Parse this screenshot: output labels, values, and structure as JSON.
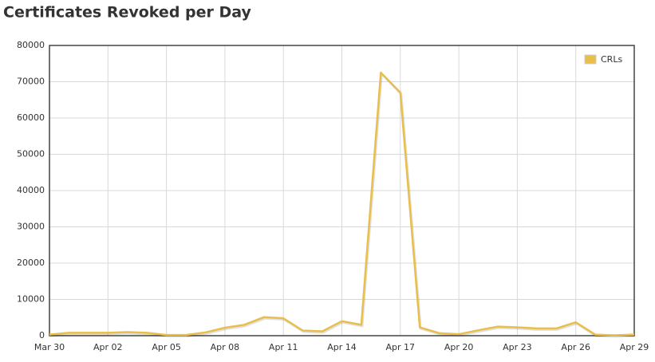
{
  "chart_data": {
    "type": "line",
    "title": "Certificates Revoked per Day",
    "categories": [
      "Mar 30",
      null,
      null,
      "Apr 02",
      null,
      null,
      "Apr 05",
      null,
      null,
      "Apr 08",
      null,
      null,
      "Apr 11",
      null,
      null,
      "Apr 14",
      null,
      null,
      "Apr 17",
      null,
      null,
      "Apr 20",
      null,
      null,
      "Apr 23",
      null,
      null,
      "Apr 26",
      null,
      null,
      "Apr 29"
    ],
    "series": [
      {
        "name": "CRLs",
        "color": "#e8bf4a",
        "values": [
          300,
          800,
          800,
          800,
          1000,
          800,
          200,
          200,
          900,
          2200,
          3000,
          5100,
          4800,
          1400,
          1200,
          4000,
          3000,
          72500,
          67000,
          2300,
          700,
          400,
          1500,
          2500,
          2300,
          2000,
          2000,
          3700,
          300,
          100,
          300
        ]
      }
    ],
    "ylim": [
      0,
      80000
    ],
    "yticks": [
      0,
      10000,
      20000,
      30000,
      40000,
      50000,
      60000,
      70000,
      80000
    ],
    "grid": true,
    "legend": "top-right"
  }
}
